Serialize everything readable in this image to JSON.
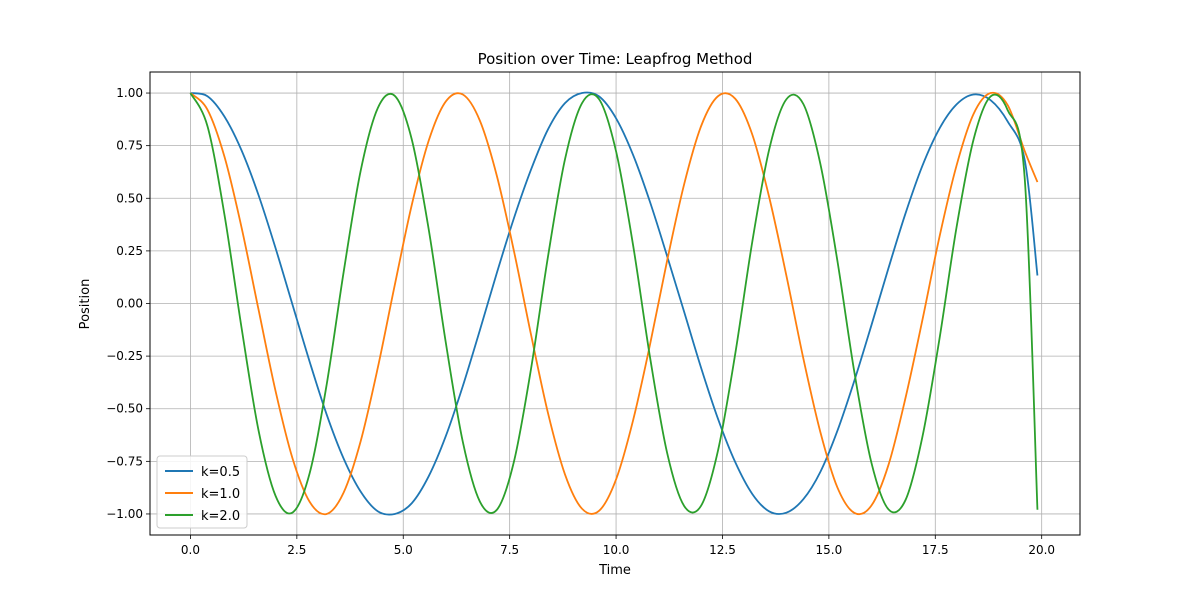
{
  "chart_data": {
    "type": "line",
    "title": "Position over Time: Leapfrog Method",
    "xlabel": "Time",
    "ylabel": "Position",
    "xlim": [
      -0.95,
      20.9
    ],
    "ylim": [
      -1.1,
      1.1
    ],
    "x_ticks": [
      0.0,
      2.5,
      5.0,
      7.5,
      10.0,
      12.5,
      15.0,
      17.5,
      20.0
    ],
    "x_tick_labels": [
      "0.0",
      "2.5",
      "5.0",
      "7.5",
      "10.0",
      "12.5",
      "15.0",
      "17.5",
      "20.0"
    ],
    "y_ticks": [
      -1.0,
      -0.75,
      -0.5,
      -0.25,
      0.0,
      0.25,
      0.5,
      0.75,
      1.0
    ],
    "y_tick_labels": [
      "−1.00",
      "−0.75",
      "−0.50",
      "−0.25",
      "0.00",
      "0.25",
      "0.50",
      "0.75",
      "1.00"
    ],
    "grid": true,
    "legend_position": "bottom-left",
    "x": [
      0.0,
      0.4,
      0.8,
      1.2,
      1.6,
      2.0,
      2.4,
      2.8,
      3.2,
      3.6,
      4.0,
      4.4,
      4.8,
      5.2,
      5.6,
      6.0,
      6.4,
      6.8,
      7.2,
      7.6,
      8.0,
      8.4,
      8.8,
      9.2,
      9.6,
      10.0,
      10.4,
      10.8,
      11.2,
      11.6,
      12.0,
      12.4,
      12.8,
      13.2,
      13.6,
      14.0,
      14.4,
      14.8,
      15.2,
      15.6,
      16.0,
      16.4,
      16.8,
      17.2,
      17.6,
      18.0,
      18.4,
      18.8,
      19.2,
      19.6,
      19.9
    ],
    "series": [
      {
        "name": "k=0.5",
        "color": "#1f77b4",
        "values": [
          1.0,
          0.985,
          0.888,
          0.728,
          0.515,
          0.263,
          -0.007,
          -0.276,
          -0.527,
          -0.737,
          -0.894,
          -0.987,
          -1.0,
          -0.949,
          -0.82,
          -0.63,
          -0.392,
          -0.127,
          0.146,
          0.405,
          0.635,
          0.827,
          0.952,
          1.0,
          0.984,
          0.88,
          0.706,
          0.481,
          0.225,
          -0.04,
          -0.307,
          -0.551,
          -0.754,
          -0.905,
          -0.988,
          -0.994,
          -0.93,
          -0.8,
          -0.605,
          -0.366,
          -0.103,
          0.168,
          0.428,
          0.656,
          0.832,
          0.946,
          0.993,
          0.966,
          0.865,
          0.683,
          0.133
        ]
      },
      {
        "name": "k=1.0",
        "color": "#ff7f0e",
        "values": [
          1.0,
          0.921,
          0.697,
          0.362,
          -0.029,
          -0.416,
          -0.737,
          -0.942,
          -1.0,
          -0.898,
          -0.654,
          -0.307,
          0.087,
          0.468,
          0.775,
          0.96,
          0.993,
          0.869,
          0.606,
          0.25,
          -0.146,
          -0.52,
          -0.812,
          -0.975,
          -0.985,
          -0.836,
          -0.555,
          -0.193,
          0.204,
          0.567,
          0.844,
          0.986,
          0.973,
          0.803,
          0.503,
          0.134,
          -0.261,
          -0.611,
          -0.874,
          -0.995,
          -0.96,
          -0.767,
          -0.449,
          -0.076,
          0.318,
          0.656,
          0.901,
          1.0,
          0.943,
          0.725,
          0.577
        ]
      },
      {
        "name": "k=2.0",
        "color": "#2ca02c",
        "values": [
          1.0,
          0.843,
          0.421,
          -0.114,
          -0.603,
          -0.914,
          -0.993,
          -0.807,
          -0.386,
          0.15,
          0.631,
          0.928,
          0.987,
          0.78,
          0.35,
          -0.186,
          -0.658,
          -0.941,
          -0.98,
          -0.752,
          -0.313,
          0.222,
          0.685,
          0.952,
          0.971,
          0.723,
          0.277,
          -0.258,
          -0.71,
          -0.962,
          -0.96,
          -0.694,
          -0.239,
          0.293,
          0.734,
          0.97,
          0.948,
          0.663,
          0.203,
          -0.328,
          -0.757,
          -0.978,
          -0.934,
          -0.631,
          -0.166,
          0.363,
          0.78,
          0.984,
          0.919,
          0.598,
          -0.98
        ]
      }
    ]
  }
}
